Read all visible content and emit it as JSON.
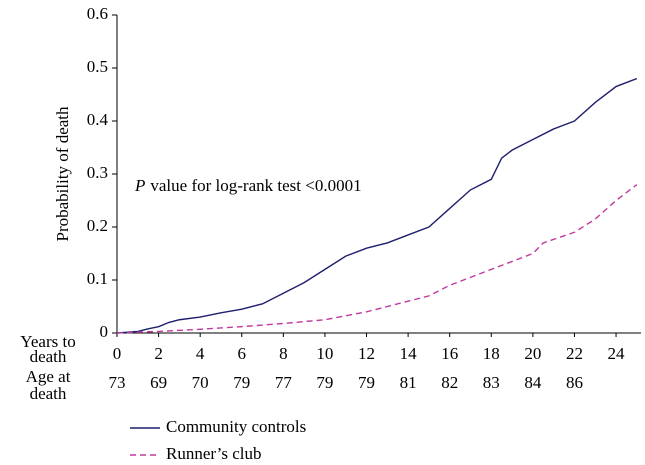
{
  "chart_data": {
    "type": "line",
    "y_label": "Probability of death",
    "annotation": {
      "italic": "P",
      "text": "value for log-rank test <0.0001"
    },
    "x_label_lines": [
      "Years to",
      "death"
    ],
    "age_row": {
      "label_lines": [
        "Age at",
        "death"
      ],
      "values": [
        73,
        69,
        70,
        79,
        77,
        79,
        79,
        81,
        82,
        83,
        84,
        86
      ],
      "colors": [
        "#888888",
        "#888888",
        "#888888",
        "#888888",
        "#000000",
        "#000000",
        "#000000",
        "#000000",
        "#000000",
        "#000000",
        "#000000",
        "#000000"
      ]
    },
    "xlim": [
      0,
      25.2
    ],
    "xticks": [
      0,
      2,
      4,
      6,
      8,
      10,
      12,
      14,
      16,
      18,
      20,
      22,
      24
    ],
    "ylim": [
      0,
      0.6
    ],
    "yticks": [
      0,
      0.1,
      0.2,
      0.3,
      0.4,
      0.5,
      0.6
    ],
    "series": [
      {
        "name": "Community controls",
        "color": "#1f1f6e",
        "dash": "none",
        "x": [
          0,
          1,
          1.5,
          2,
          2.5,
          3,
          4,
          5,
          6,
          7,
          8,
          9,
          10,
          11,
          12,
          13,
          14,
          15,
          16,
          17,
          18,
          18.5,
          19,
          20,
          21,
          22,
          23,
          24,
          25
        ],
        "values": [
          0,
          0.003,
          0.008,
          0.012,
          0.02,
          0.025,
          0.03,
          0.038,
          0.045,
          0.055,
          0.075,
          0.095,
          0.12,
          0.145,
          0.16,
          0.17,
          0.185,
          0.2,
          0.235,
          0.27,
          0.29,
          0.33,
          0.345,
          0.365,
          0.385,
          0.4,
          0.435,
          0.465,
          0.48
        ]
      },
      {
        "name": "Runner’s club",
        "color": "#c0399e",
        "dash": "6,4",
        "x": [
          0,
          2,
          4,
          6,
          8,
          10,
          12,
          13,
          14,
          15,
          16,
          17,
          18,
          19,
          20,
          20.5,
          22,
          23,
          24,
          25
        ],
        "values": [
          0,
          0.003,
          0.007,
          0.012,
          0.018,
          0.025,
          0.04,
          0.05,
          0.06,
          0.07,
          0.09,
          0.105,
          0.12,
          0.135,
          0.15,
          0.17,
          0.19,
          0.215,
          0.25,
          0.28
        ]
      }
    ]
  }
}
